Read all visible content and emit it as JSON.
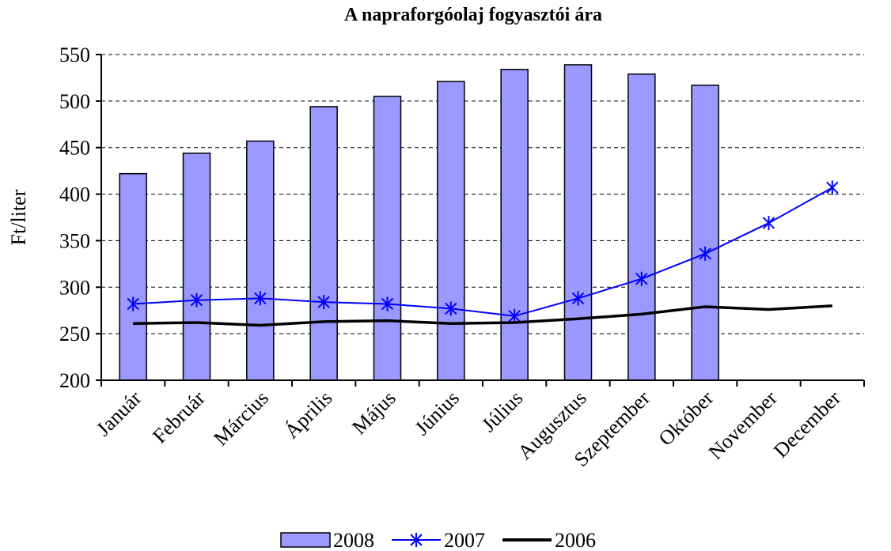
{
  "chart_data": {
    "type": "combo",
    "title": "A napraforgóolaj fogyasztói ára",
    "y_label": "Ft/liter",
    "categories": [
      "Január",
      "Február",
      "Március",
      "Április",
      "Május",
      "Június",
      "Július",
      "Augusztus",
      "Szeptember",
      "Október",
      "November",
      "December"
    ],
    "series": [
      {
        "name": "2008",
        "type": "bar",
        "color": "#9999ff",
        "values": [
          422,
          444,
          457,
          494,
          505,
          521,
          534,
          539,
          529,
          517,
          null,
          null
        ]
      },
      {
        "name": "2007",
        "type": "line",
        "marker": "star",
        "color": "#0000ff",
        "values": [
          282,
          286,
          288,
          284,
          282,
          277,
          269,
          288,
          309,
          336,
          369,
          407
        ]
      },
      {
        "name": "2006",
        "type": "line",
        "color": "#000000",
        "values": [
          261,
          262,
          259,
          263,
          264,
          261,
          262,
          266,
          271,
          279,
          276,
          280
        ]
      }
    ],
    "ylim": [
      200,
      550
    ],
    "yticks": [
      200,
      250,
      300,
      350,
      400,
      450,
      500,
      550
    ],
    "grid": true,
    "legend": "bottom"
  }
}
